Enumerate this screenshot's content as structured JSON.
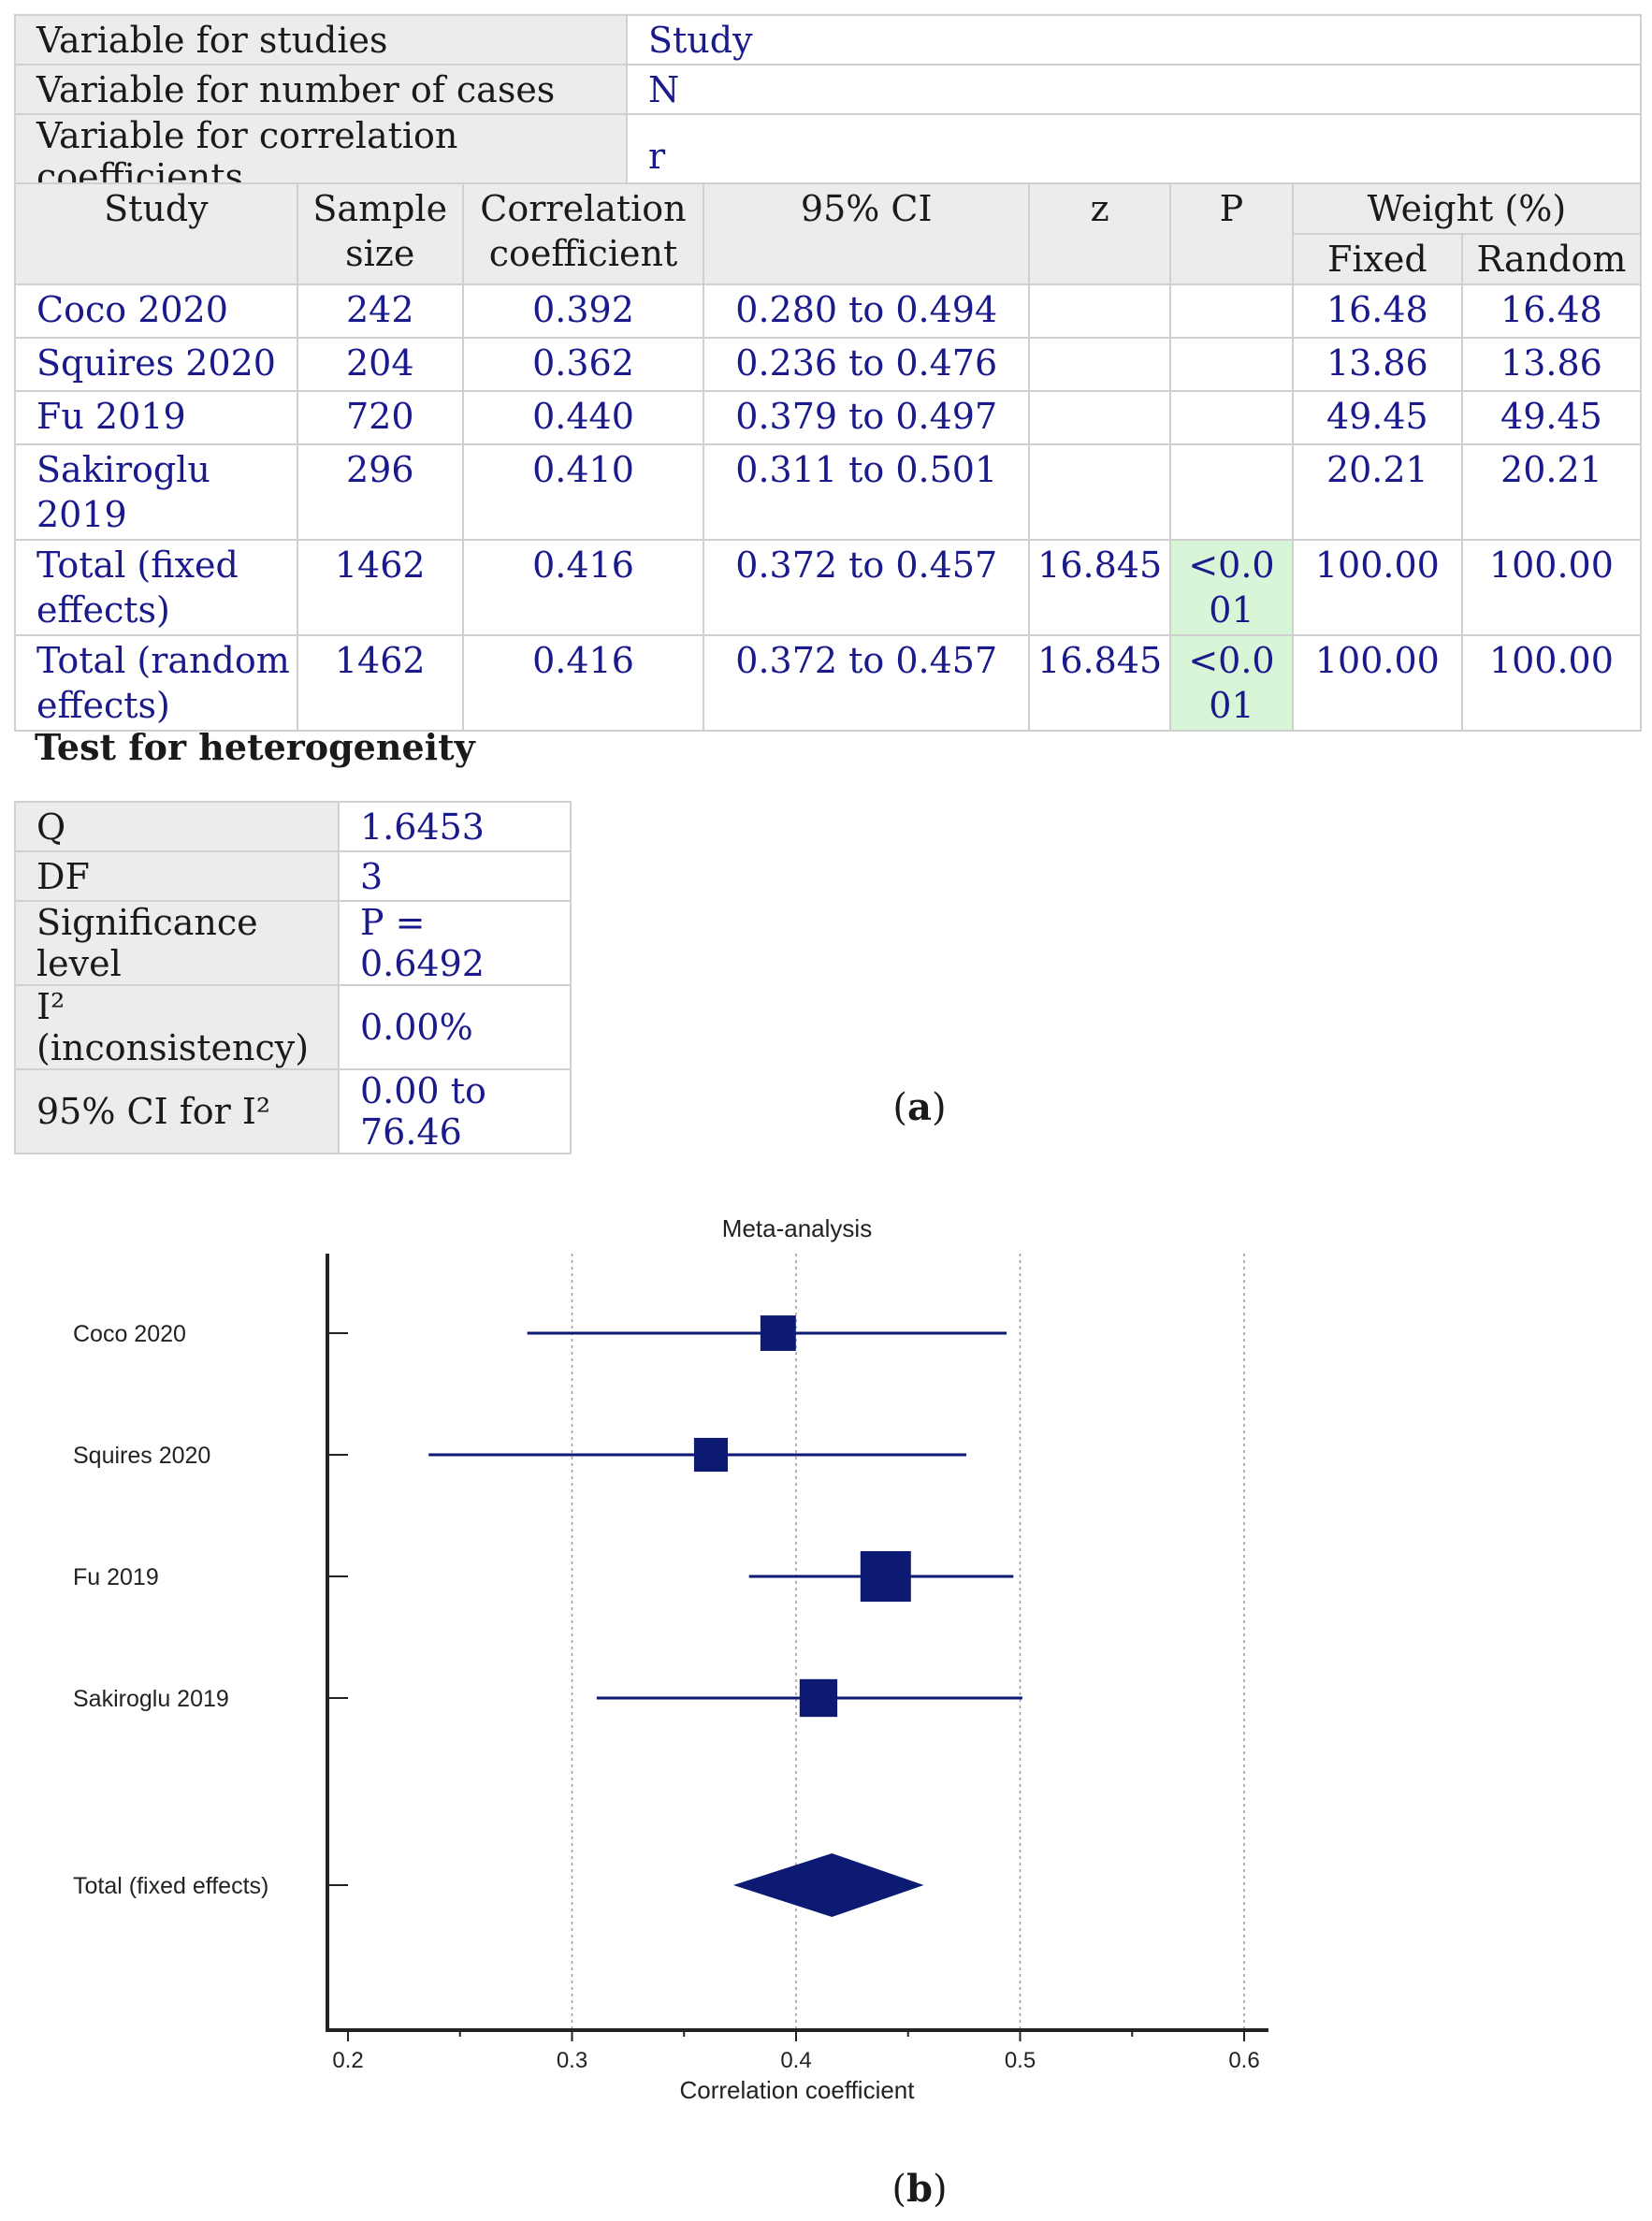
{
  "variables": [
    {
      "label": "Variable for studies",
      "value": "Study"
    },
    {
      "label": "Variable for number of cases",
      "value": "N"
    },
    {
      "label": "Variable for correlation coefficients",
      "value": "r"
    }
  ],
  "results": {
    "headers": {
      "study": "Study",
      "sample_size_1": "Sample",
      "sample_size_2": "size",
      "corr_1": "Correlation",
      "corr_2": "coefficient",
      "ci": "95% CI",
      "z": "z",
      "p": "P",
      "weight": "Weight (%)",
      "fixed": "Fixed",
      "random": "Random"
    },
    "rows": [
      {
        "study": "Coco 2020",
        "n": "242",
        "r": "0.392",
        "ci": "0.280 to 0.494",
        "fixed": "16.48",
        "random": "16.48"
      },
      {
        "study": "Squires 2020",
        "n": "204",
        "r": "0.362",
        "ci": "0.236 to 0.476",
        "fixed": "13.86",
        "random": "13.86"
      },
      {
        "study": "Fu 2019",
        "n": "720",
        "r": "0.440",
        "ci": "0.379 to 0.497",
        "fixed": "49.45",
        "random": "49.45"
      },
      {
        "study": "Sakiroglu 2019",
        "n": "296",
        "r": "0.410",
        "ci": "0.311 to 0.501",
        "fixed": "20.21",
        "random": "20.21"
      }
    ],
    "totals": [
      {
        "study_1": "Total (fixed",
        "study_2": "effects)",
        "n": "1462",
        "r": "0.416",
        "ci": "0.372 to 0.457",
        "z": "16.845",
        "p_1": "<0.0",
        "p_2": "01",
        "fixed": "100.00",
        "random": "100.00"
      },
      {
        "study_1": "Total (random",
        "study_2": "effects)",
        "n": "1462",
        "r": "0.416",
        "ci": "0.372 to 0.457",
        "z": "16.845",
        "p_1": "<0.0",
        "p_2": "01",
        "fixed": "100.00",
        "random": "100.00"
      }
    ]
  },
  "heterogeneity": {
    "title": "Test for heterogeneity",
    "rows": [
      {
        "label": "Q",
        "value": "1.6453"
      },
      {
        "label": "DF",
        "value": "3"
      },
      {
        "label": "Significance level",
        "value": "P = 0.6492"
      },
      {
        "label": "I² (inconsistency)",
        "value": "0.00%"
      },
      {
        "label": "95% CI for I²",
        "value": "0.00 to 76.46"
      }
    ]
  },
  "captions": {
    "a": "a",
    "b": "b"
  },
  "chart_data": {
    "type": "forest",
    "title": "Meta-analysis",
    "xlabel": "Correlation coefficient",
    "xlim": [
      0.19,
      0.6
    ],
    "xticks": [
      "0.2",
      "0.3",
      "0.4",
      "0.5",
      "0.6"
    ],
    "tick_values": [
      0.2,
      0.3,
      0.4,
      0.5,
      0.6
    ],
    "grid": true,
    "studies": [
      {
        "label": "Coco 2020",
        "r": 0.392,
        "lo": 0.28,
        "hi": 0.494,
        "weight": 16.48
      },
      {
        "label": "Squires 2020",
        "r": 0.362,
        "lo": 0.236,
        "hi": 0.476,
        "weight": 13.86
      },
      {
        "label": "Fu 2019",
        "r": 0.44,
        "lo": 0.379,
        "hi": 0.497,
        "weight": 49.45
      },
      {
        "label": "Sakiroglu 2019",
        "r": 0.41,
        "lo": 0.311,
        "hi": 0.501,
        "weight": 20.21
      }
    ],
    "total": {
      "label": "Total (fixed effects)",
      "r": 0.416,
      "lo": 0.372,
      "hi": 0.457
    },
    "color": "#0d1a73"
  }
}
